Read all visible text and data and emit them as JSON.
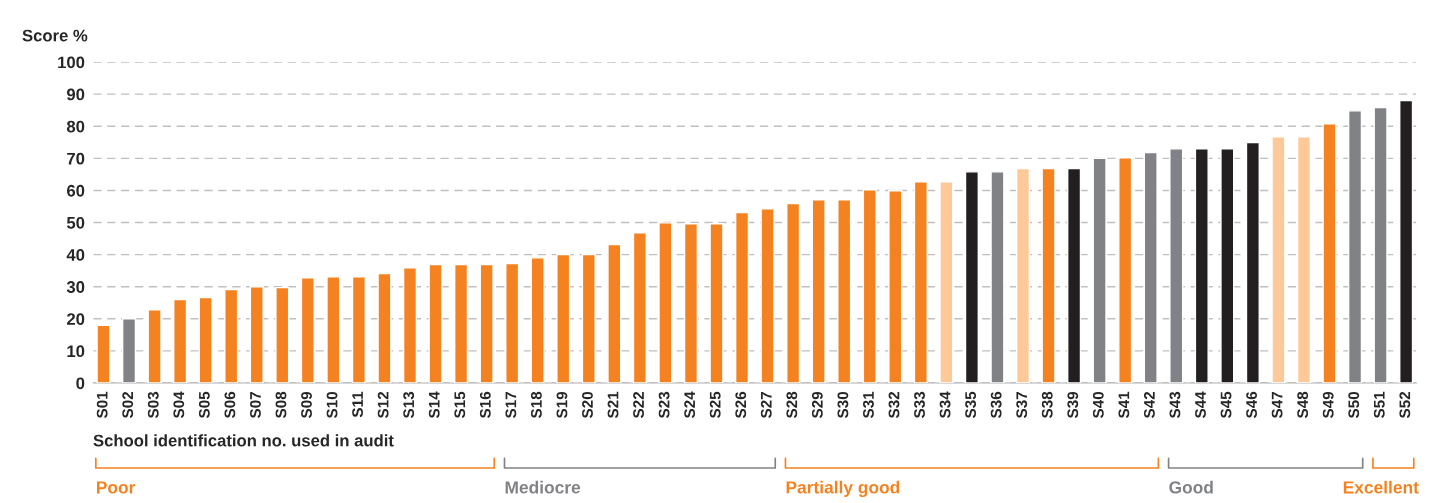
{
  "chart_data": {
    "type": "bar",
    "ylabel": "Score %",
    "xlabel": "School identification no. used in audit",
    "categories": [
      "S01",
      "S02",
      "S03",
      "S04",
      "S05",
      "S06",
      "S07",
      "S08",
      "S09",
      "S10",
      "S11",
      "S12",
      "S13",
      "S14",
      "S15",
      "S16",
      "S17",
      "S18",
      "S19",
      "S20",
      "S21",
      "S22",
      "S23",
      "S24",
      "S25",
      "S26",
      "S27",
      "S28",
      "S29",
      "S30",
      "S31",
      "S32",
      "S33",
      "S34",
      "S35",
      "S36",
      "S37",
      "S38",
      "S39",
      "S40",
      "S41",
      "S42",
      "S43",
      "S44",
      "S45",
      "S46",
      "S47",
      "S48",
      "S49",
      "S50",
      "S51",
      "S52"
    ],
    "values": [
      18,
      20,
      22.8,
      26,
      26.6,
      29.1,
      30,
      29.7,
      32.8,
      33.1,
      33.1,
      34.1,
      35.9,
      36.9,
      36.9,
      36.9,
      37.2,
      39,
      40,
      40,
      43.1,
      46.8,
      49.9,
      49.6,
      49.6,
      53.1,
      54.3,
      55.9,
      57.1,
      57.1,
      60.2,
      59.9,
      62.7,
      62.7,
      65.8,
      65.8,
      66.8,
      66.8,
      66.8,
      70,
      70.2,
      71.8,
      73,
      73,
      73,
      74.9,
      76.7,
      76.7,
      80.8,
      84.8,
      85.8,
      88
    ],
    "colors": [
      "#f58220",
      "#808285",
      "#f58220",
      "#f58220",
      "#f58220",
      "#f58220",
      "#f58220",
      "#f58220",
      "#f58220",
      "#f58220",
      "#f58220",
      "#f58220",
      "#f58220",
      "#f58220",
      "#f58220",
      "#f58220",
      "#f58220",
      "#f58220",
      "#f58220",
      "#f58220",
      "#f58220",
      "#f58220",
      "#f58220",
      "#f58220",
      "#f58220",
      "#f58220",
      "#f58220",
      "#f58220",
      "#f58220",
      "#f58220",
      "#f58220",
      "#f58220",
      "#f58220",
      "#fdc998",
      "#231f20",
      "#808285",
      "#fdc998",
      "#f58220",
      "#231f20",
      "#808285",
      "#f58220",
      "#808285",
      "#808285",
      "#231f20",
      "#231f20",
      "#231f20",
      "#fdc998",
      "#fdc998",
      "#f58220",
      "#808285",
      "#808285",
      "#231f20"
    ],
    "ylim": [
      0,
      100
    ],
    "yticks": [
      0,
      10,
      20,
      30,
      40,
      50,
      60,
      70,
      80,
      90,
      100
    ],
    "grid": "y",
    "annotations": [
      "Poor",
      "Mediocre",
      "Partially good",
      "Good",
      "Excellent"
    ]
  }
}
